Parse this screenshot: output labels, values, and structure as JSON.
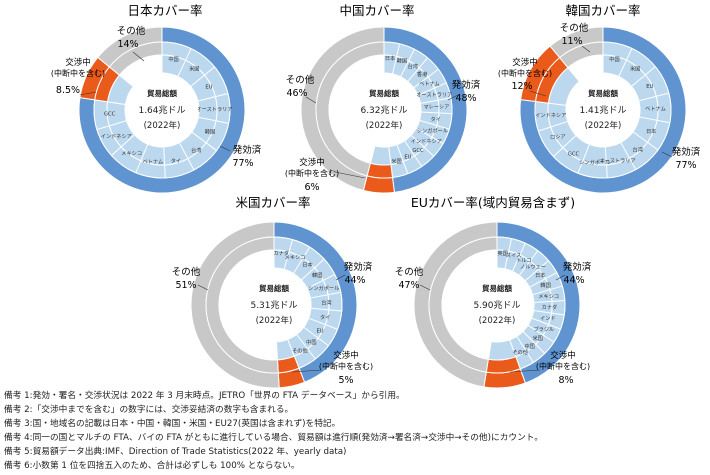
{
  "colors": {
    "effective": "#5f94d0",
    "negotiating": "#e95a1b",
    "other": "#c8c8c8",
    "inner_fill": "#bcd8ef",
    "inner_line": "#ffffff"
  },
  "chart_data": [
    {
      "type": "pie",
      "title": "日本カバー率",
      "center_label": "貿易総額",
      "center_value": "1.64兆ドル",
      "center_year": "(2022年)",
      "slices": [
        {
          "name": "発効済",
          "value": 77,
          "label": "77%",
          "category": "effective"
        },
        {
          "name": "交渉中\n(中断中を含む)",
          "value": 8.5,
          "label": "8.5%",
          "category": "negotiating"
        },
        {
          "name": "その他",
          "value": 14,
          "label": "14%",
          "category": "other"
        }
      ],
      "inner_labels": [
        "中国",
        "米国",
        "EU",
        "オーストラリア",
        "韓国",
        "台湾",
        "タイ",
        "ベトナム",
        "メキシコ",
        "インドネシア",
        "GCC"
      ]
    },
    {
      "type": "pie",
      "title": "中国カバー率",
      "center_label": "貿易総額",
      "center_value": "6.32兆ドル",
      "center_year": "(2022年)",
      "slices": [
        {
          "name": "発効済",
          "value": 48,
          "label": "48%",
          "category": "effective"
        },
        {
          "name": "交渉中\n(中断中を含む)",
          "value": 6,
          "label": "6%",
          "category": "negotiating"
        },
        {
          "name": "その他",
          "value": 46,
          "label": "46%",
          "category": "other"
        }
      ],
      "inner_labels": [
        "日本",
        "韓国",
        "台湾",
        "香港",
        "ベトナム",
        "オーストラリア",
        "マレーシア",
        "タイ",
        "シンガポール",
        "インドネシア",
        "GCC",
        "EU",
        "米国"
      ]
    },
    {
      "type": "pie",
      "title": "韓国カバー率",
      "center_label": "貿易総額",
      "center_value": "1.41兆ドル",
      "center_year": "(2022年)",
      "slices": [
        {
          "name": "発効済",
          "value": 77,
          "label": "77%",
          "category": "effective"
        },
        {
          "name": "交渉中\n(中断中を含む)",
          "value": 12,
          "label": "12%",
          "category": "negotiating"
        },
        {
          "name": "その他",
          "value": 11,
          "label": "11%",
          "category": "other"
        }
      ],
      "inner_labels": [
        "中国",
        "米国",
        "EU",
        "ベトナム",
        "日本",
        "台湾",
        "オーストラリア",
        "シンガポール",
        "GCC",
        "ロシア",
        "インドネシア"
      ]
    },
    {
      "type": "pie",
      "title": "米国カバー率",
      "center_label": "貿易総額",
      "center_value": "5.31兆ドル",
      "center_year": "(2022年)",
      "slices": [
        {
          "name": "発効済",
          "value": 44,
          "label": "44%",
          "category": "effective"
        },
        {
          "name": "交渉中\n(中断中を含む)",
          "value": 5,
          "label": "5%",
          "category": "negotiating"
        },
        {
          "name": "その他",
          "value": 51,
          "label": "51%",
          "category": "other"
        }
      ],
      "inner_labels": [
        "カナダ",
        "メキシコ",
        "日本",
        "韓国",
        "シンガポール",
        "台湾",
        "タイ",
        "EU",
        "中国",
        "その他"
      ]
    },
    {
      "type": "pie",
      "title": "EUカバー率(域内貿易含まず)",
      "center_label": "貿易総額",
      "center_value": "5.90兆ドル",
      "center_year": "(2022年)",
      "slices": [
        {
          "name": "発効済",
          "value": 44,
          "label": "44%",
          "category": "effective"
        },
        {
          "name": "交渉中\n(中断中を含む)",
          "value": 8,
          "label": "8%",
          "category": "negotiating"
        },
        {
          "name": "その他",
          "value": 47,
          "label": "47%",
          "category": "other"
        }
      ],
      "inner_labels": [
        "英国",
        "スイス",
        "トルコ",
        "ノルウェー",
        "日本",
        "韓国",
        "メキシコ",
        "カナダ",
        "インド",
        "ブラジル",
        "米国",
        "中国",
        "その他"
      ]
    }
  ],
  "notes": [
    "備考 1:発効・署名・交渉状況は 2022 年 3 月末時点。JETRO「世界の FTA データベース」から引用。",
    "備考 2:「交渉中までを含む」の数字には、交渉妥結済の数字も含まれる。",
    "備考 3:国・地域名の記載は日本・中国・韓国・米国・EU27(英国は含まれず)を特記。",
    "備考 4:同一の国とマルチの FTA、バイの FTA がともに進行している場合、貿易額は進行順(発効済→署名済→交渉中→その他)にカウント。",
    "備考 5:貿易額データ出典:IMF、Direction of Trade Statistics(2022 年、yearly data)",
    "備考 6:小数第 1 位を四捨五入のため、合計は必ずしも 100% とならない。"
  ]
}
